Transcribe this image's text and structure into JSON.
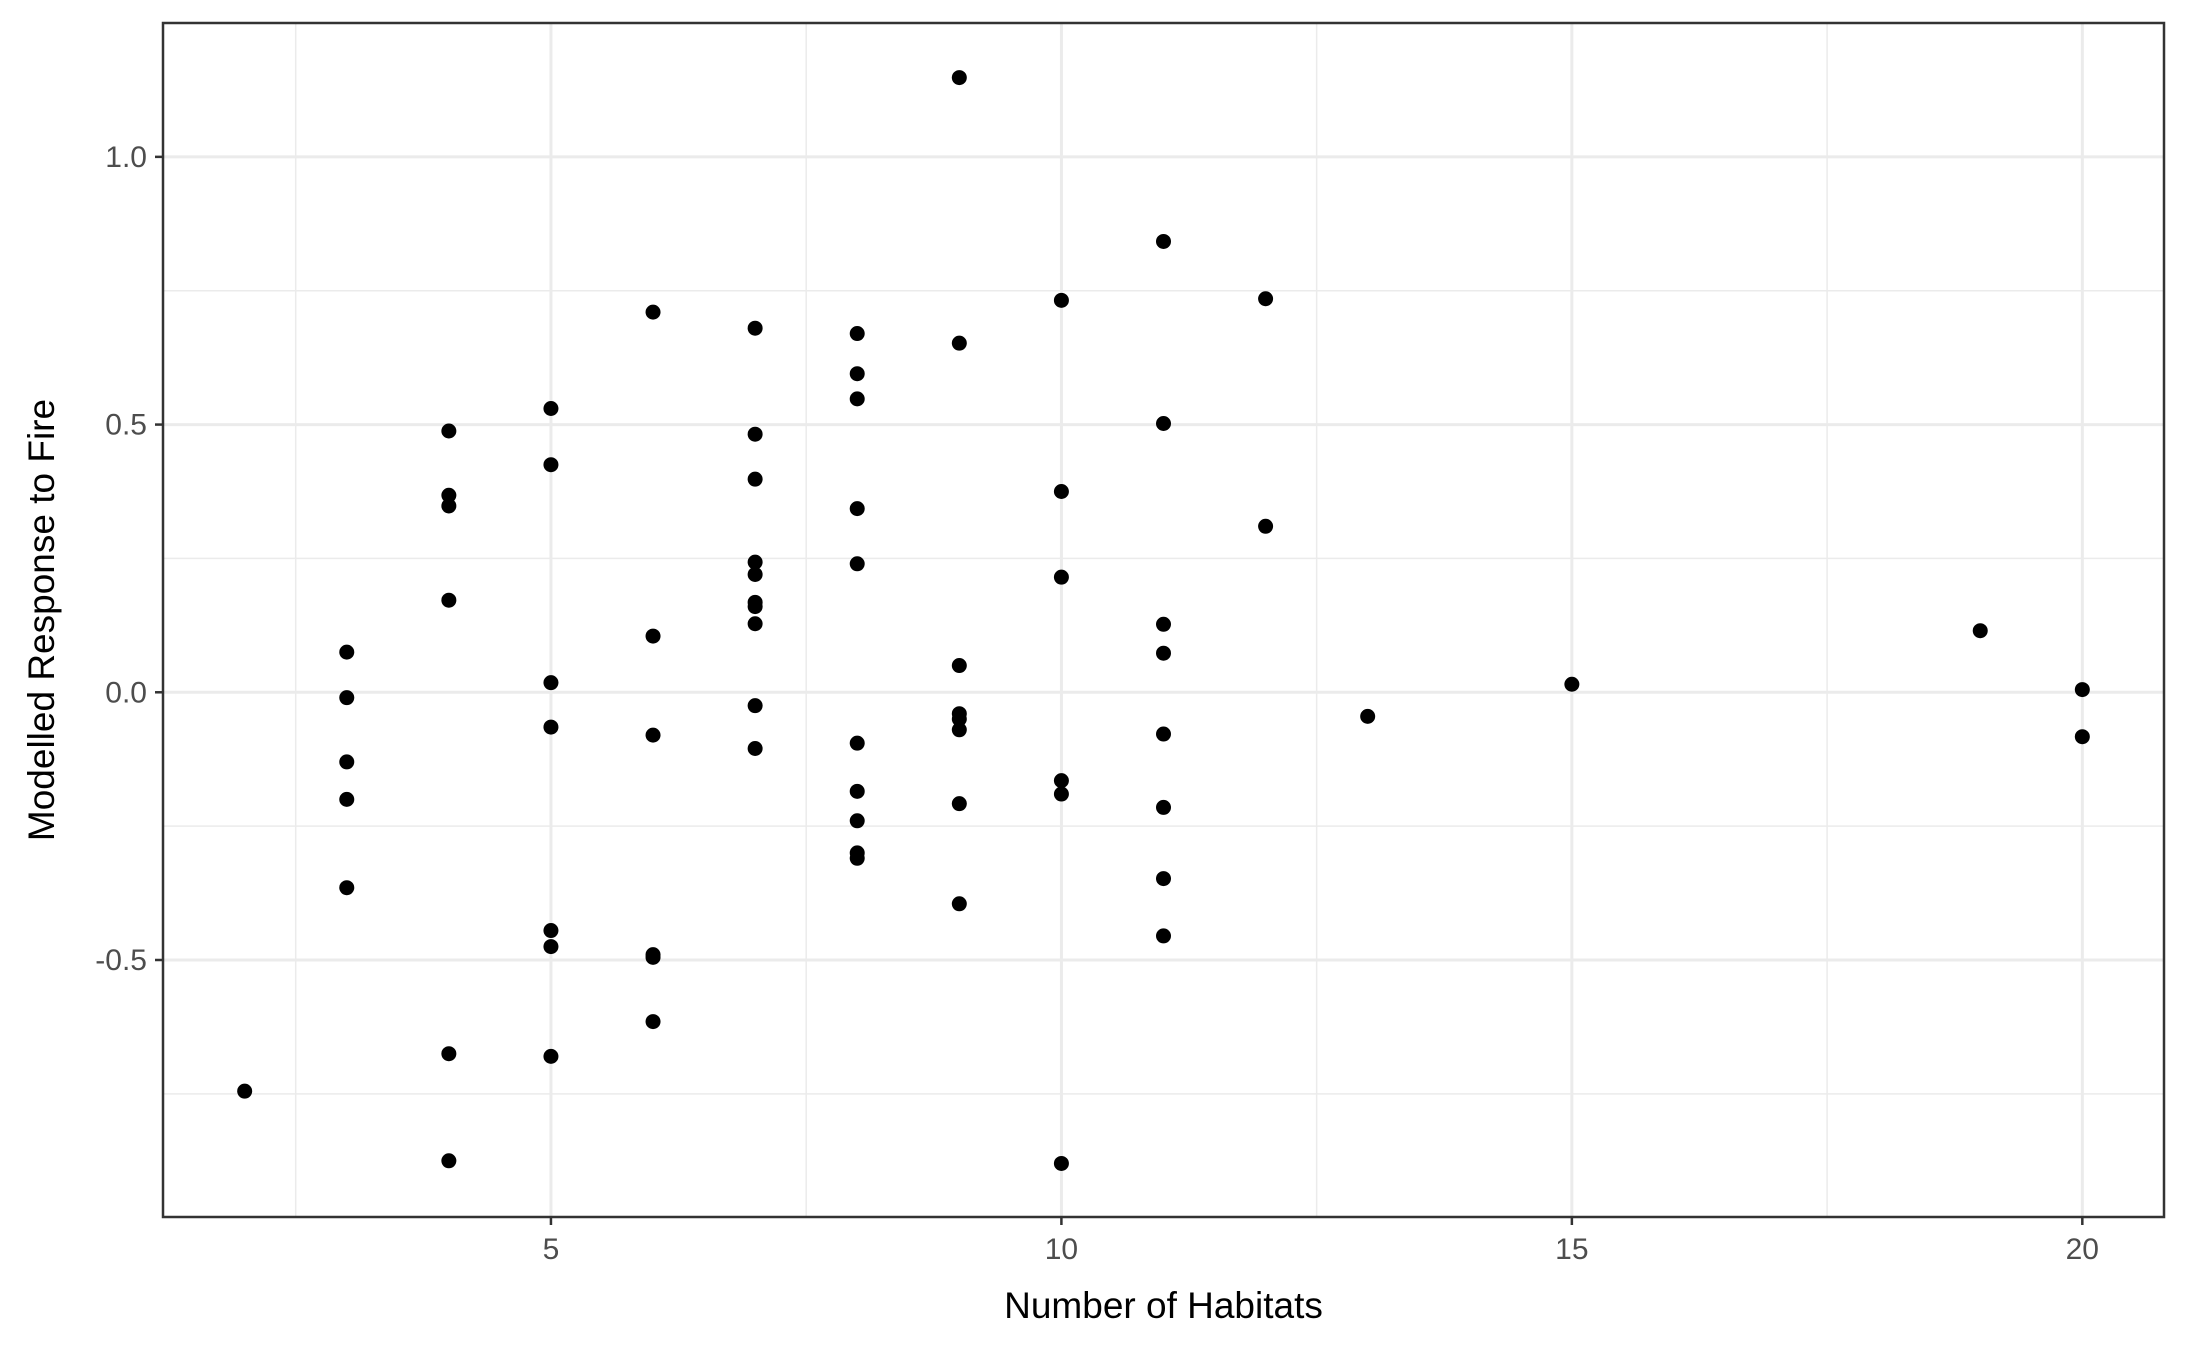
{
  "chart_data": {
    "type": "scatter",
    "title": "",
    "xlabel": "Number of Habitats",
    "ylabel": "Modelled Response to Fire",
    "xlim": [
      1.2,
      20.8
    ],
    "ylim": [
      -0.98,
      1.25
    ],
    "x_ticks": [
      5,
      10,
      15,
      20
    ],
    "x_tick_labels": [
      "5",
      "10",
      "15",
      "20"
    ],
    "y_ticks": [
      -0.5,
      0.0,
      0.5,
      1.0
    ],
    "y_tick_labels": [
      "-0.5",
      "0.0",
      "0.5",
      "1.0"
    ],
    "x_minor_ticks": [
      2.5,
      7.5,
      12.5,
      17.5
    ],
    "y_minor_ticks": [
      -0.75,
      -0.25,
      0.25,
      0.75
    ],
    "grid": true,
    "legend": "none",
    "point_color": "#000000",
    "panel_border_color": "#333333",
    "grid_color": "#ebebeb",
    "points": [
      {
        "x": 2,
        "y": -0.745
      },
      {
        "x": 3,
        "y": 0.075
      },
      {
        "x": 3,
        "y": -0.01
      },
      {
        "x": 3,
        "y": -0.13
      },
      {
        "x": 3,
        "y": -0.2
      },
      {
        "x": 3,
        "y": -0.365
      },
      {
        "x": 4,
        "y": 0.488
      },
      {
        "x": 4,
        "y": 0.368
      },
      {
        "x": 4,
        "y": 0.348
      },
      {
        "x": 4,
        "y": 0.172
      },
      {
        "x": 4,
        "y": -0.675
      },
      {
        "x": 4,
        "y": -0.875
      },
      {
        "x": 5,
        "y": 0.53
      },
      {
        "x": 5,
        "y": 0.425
      },
      {
        "x": 5,
        "y": 0.018
      },
      {
        "x": 5,
        "y": -0.065
      },
      {
        "x": 5,
        "y": -0.445
      },
      {
        "x": 5,
        "y": -0.475
      },
      {
        "x": 5,
        "y": -0.68
      },
      {
        "x": 6,
        "y": 0.71
      },
      {
        "x": 6,
        "y": 0.105
      },
      {
        "x": 6,
        "y": -0.08
      },
      {
        "x": 6,
        "y": -0.49
      },
      {
        "x": 6,
        "y": -0.495
      },
      {
        "x": 6,
        "y": -0.615
      },
      {
        "x": 7,
        "y": 0.68
      },
      {
        "x": 7,
        "y": 0.482
      },
      {
        "x": 7,
        "y": 0.398
      },
      {
        "x": 7,
        "y": 0.243
      },
      {
        "x": 7,
        "y": 0.22
      },
      {
        "x": 7,
        "y": 0.168
      },
      {
        "x": 7,
        "y": 0.16
      },
      {
        "x": 7,
        "y": 0.128
      },
      {
        "x": 7,
        "y": -0.025
      },
      {
        "x": 7,
        "y": -0.105
      },
      {
        "x": 8,
        "y": 0.67
      },
      {
        "x": 8,
        "y": 0.595
      },
      {
        "x": 8,
        "y": 0.548
      },
      {
        "x": 8,
        "y": 0.343
      },
      {
        "x": 8,
        "y": 0.24
      },
      {
        "x": 8,
        "y": -0.095
      },
      {
        "x": 8,
        "y": -0.185
      },
      {
        "x": 8,
        "y": -0.24
      },
      {
        "x": 8,
        "y": -0.3
      },
      {
        "x": 8,
        "y": -0.31
      },
      {
        "x": 9,
        "y": 1.148
      },
      {
        "x": 9,
        "y": 0.652
      },
      {
        "x": 9,
        "y": 0.05
      },
      {
        "x": 9,
        "y": -0.04
      },
      {
        "x": 9,
        "y": -0.05
      },
      {
        "x": 9,
        "y": -0.07
      },
      {
        "x": 9,
        "y": -0.208
      },
      {
        "x": 9,
        "y": -0.395
      },
      {
        "x": 10,
        "y": 0.732
      },
      {
        "x": 10,
        "y": 0.375
      },
      {
        "x": 10,
        "y": 0.215
      },
      {
        "x": 10,
        "y": -0.165
      },
      {
        "x": 10,
        "y": -0.19
      },
      {
        "x": 10,
        "y": -0.88
      },
      {
        "x": 11,
        "y": 0.842
      },
      {
        "x": 11,
        "y": 0.502
      },
      {
        "x": 11,
        "y": 0.127
      },
      {
        "x": 11,
        "y": 0.073
      },
      {
        "x": 11,
        "y": -0.078
      },
      {
        "x": 11,
        "y": -0.215
      },
      {
        "x": 11,
        "y": -0.348
      },
      {
        "x": 11,
        "y": -0.455
      },
      {
        "x": 12,
        "y": 0.735
      },
      {
        "x": 12,
        "y": 0.31
      },
      {
        "x": 13,
        "y": -0.045
      },
      {
        "x": 15,
        "y": 0.015
      },
      {
        "x": 19,
        "y": 0.115
      },
      {
        "x": 20,
        "y": 0.005
      },
      {
        "x": 20,
        "y": -0.083
      }
    ]
  }
}
